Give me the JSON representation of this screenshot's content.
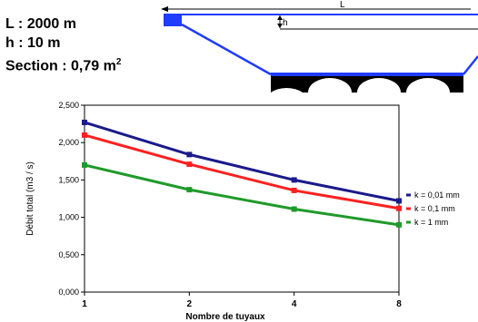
{
  "params": {
    "length": "L : 2000 m",
    "height": "h : 10 m",
    "section_prefix": "Section : 0,79 m",
    "section_exp": "2"
  },
  "diagram": {
    "length_label": "L",
    "height_label": "h",
    "colors": {
      "water": "#1f3cff",
      "culvert": "#000000",
      "dim_line": "#000000"
    }
  },
  "chart_data": {
    "type": "line",
    "x": [
      1,
      2,
      4,
      8
    ],
    "x_scale": "log2",
    "xticks": [
      "1",
      "2",
      "4",
      "8"
    ],
    "xlabel": "Nombre de tuyaux",
    "ylabel": "Débit total (m3 / s)",
    "ylim": [
      0,
      2.5
    ],
    "yticks": [
      "0,000",
      "0,500",
      "1,000",
      "1,500",
      "2,000",
      "2,500"
    ],
    "grid": false,
    "legend_position": "right",
    "series": [
      {
        "name": "k = 0,01 mm",
        "color": "#1a1a8c",
        "values": [
          2.27,
          1.84,
          1.5,
          1.22
        ]
      },
      {
        "name": "k = 0,1 mm",
        "color": "#ff2020",
        "values": [
          2.1,
          1.71,
          1.36,
          1.12
        ]
      },
      {
        "name": "k = 1 mm",
        "color": "#1f9a2a",
        "values": [
          1.7,
          1.37,
          1.11,
          0.9
        ]
      }
    ]
  }
}
